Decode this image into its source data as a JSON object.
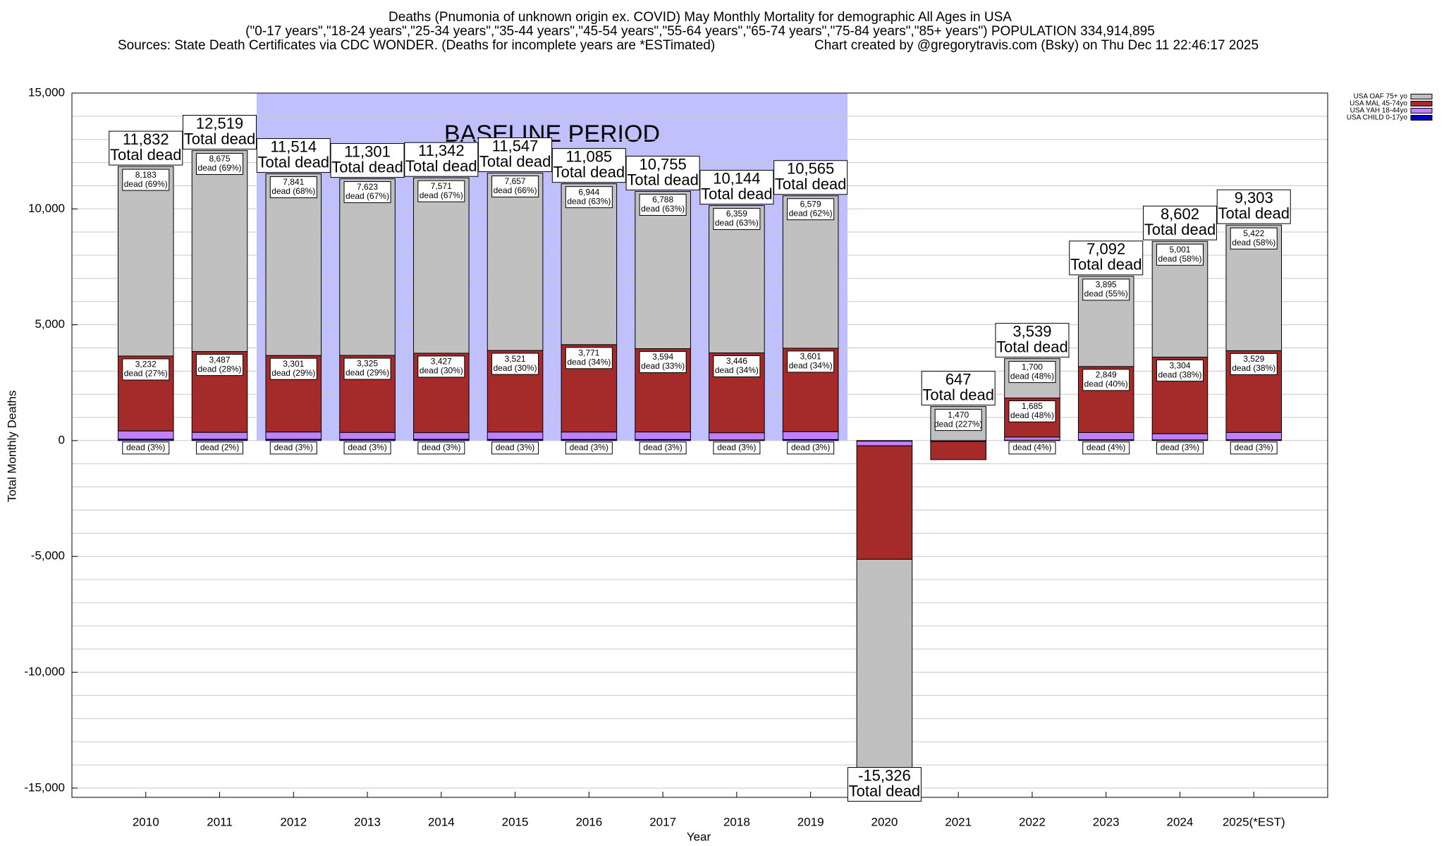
{
  "chart_data": {
    "type": "stacked_bar",
    "title": "Deaths (Pnumonia of unknown origin ex. COVID) May Monthly Mortality for demographic All Ages in USA",
    "subtitle": "(\"0-17 years\",\"18-24 years\",\"25-34 years\",\"35-44 years\",\"45-54 years\",\"55-64 years\",\"65-74 years\",\"75-84 years\",\"85+ years\") POPULATION 334,914,895",
    "source": "Sources: State Death Certificates via CDC WONDER. (Deaths for incomplete years are *ESTimated)",
    "credit": "Chart created by @gregorytravis.com (Bsky) on Thu Dec 11 22:46:17 2025",
    "y_label": "Total Monthly Deaths",
    "x_label": "Year",
    "categories": [
      "2010",
      "2011",
      "2012",
      "2013",
      "2014",
      "2015",
      "2016",
      "2017",
      "2018",
      "2019",
      "2020",
      "2021",
      "2022",
      "2023",
      "2024",
      "2025(*EST)"
    ],
    "series": [
      {
        "name": "USA OAF 75+ yo",
        "color": "#c0c0c0",
        "values": [
          8183,
          8675,
          7841,
          7623,
          7571,
          7657,
          6944,
          6788,
          6359,
          6579,
          -10200,
          1470,
          1700,
          3895,
          5001,
          5422
        ],
        "value_labels": [
          "8,183",
          "8,675",
          "7,841",
          "7,623",
          "7,571",
          "7,657",
          "6,944",
          "6,788",
          "6,359",
          "6,579",
          null,
          "1,470",
          "1,700",
          "3,895",
          "5,001",
          "5,422"
        ],
        "percent_labels": [
          "dead (69%)",
          "dead (69%)",
          "dead (68%)",
          "dead (67%)",
          "dead (67%)",
          "dead (66%)",
          "dead (63%)",
          "dead (63%)",
          "dead (63%)",
          "dead (62%)",
          null,
          "dead (227%)",
          "dead (48%)",
          "dead (55%)",
          "dead (58%)",
          "dead (58%)"
        ]
      },
      {
        "name": "USA MAL 45-74yo",
        "color": "#a52a2a",
        "values": [
          3232,
          3487,
          3301,
          3325,
          3427,
          3521,
          3771,
          3594,
          3446,
          3601,
          -4900,
          -780,
          1685,
          2849,
          3304,
          3529
        ],
        "value_labels": [
          "3,232",
          "3,487",
          "3,301",
          "3,325",
          "3,427",
          "3,521",
          "3,771",
          "3,594",
          "3,446",
          "3,601",
          null,
          null,
          "1,685",
          "2,849",
          "3,304",
          "3,529"
        ],
        "percent_labels": [
          "dead (27%)",
          "dead (28%)",
          "dead (29%)",
          "dead (29%)",
          "dead (30%)",
          "dead (30%)",
          "dead (34%)",
          "dead (33%)",
          "dead (34%)",
          "dead (34%)",
          null,
          null,
          "dead (48%)",
          "dead (40%)",
          "dead (38%)",
          "dead (38%)"
        ]
      },
      {
        "name": "USA YAH 18-44yo",
        "color": "#c080ff",
        "values": [
          354,
          297,
          315,
          299,
          286,
          316,
          319,
          326,
          308,
          339,
          -200,
          -40,
          138,
          312,
          268,
          316
        ],
        "value_labels": [
          null,
          null,
          null,
          null,
          null,
          null,
          null,
          null,
          null,
          null,
          null,
          null,
          null,
          null,
          null,
          null
        ],
        "percent_labels": [
          "dead (3%)",
          "dead (2%)",
          "dead (3%)",
          "dead (3%)",
          "dead (3%)",
          "dead (3%)",
          "dead (3%)",
          "dead (3%)",
          "dead (3%)",
          "dead (3%)",
          null,
          null,
          "dead (4%)",
          "dead (4%)",
          "dead (3%)",
          "dead (3%)"
        ]
      },
      {
        "name": "USA CHILD 0-17yo",
        "color": "#0000c0",
        "values": [
          63,
          60,
          57,
          54,
          58,
          53,
          51,
          47,
          31,
          46,
          -26,
          -3,
          16,
          36,
          29,
          36
        ]
      }
    ],
    "total_labels": [
      "11,832",
      "12,519",
      "11,514",
      "11,301",
      "11,342",
      "11,547",
      "11,085",
      "10,755",
      "10,144",
      "10,565",
      "-15,326",
      "647",
      "3,539",
      "7,092",
      "8,602",
      "9,303"
    ],
    "total_caption": "Total dead",
    "baseline_period": {
      "label": "BASELINE PERIOD",
      "start": "2012",
      "end": "2019",
      "color": "#c0c0ff"
    },
    "ylim": [
      -15400,
      15000
    ],
    "yticks": [
      {
        "value": -15000,
        "label": "-15,000"
      },
      {
        "value": -10000,
        "label": "-10,000"
      },
      {
        "value": -5000,
        "label": "-5,000"
      },
      0,
      {
        "value": 5000,
        "label": "5,000"
      },
      {
        "value": 10000,
        "label": "10,000"
      },
      {
        "value": 15000,
        "label": "15,000"
      }
    ],
    "yticks_minor": [
      -15000,
      -14000,
      -13000,
      -12000,
      -11000,
      -10000,
      -9000,
      -8000,
      -7000,
      -6000,
      -5000,
      -4000,
      -3000,
      -2000,
      -1000,
      0,
      1000,
      2000,
      3000,
      4000,
      5000,
      6000,
      7000,
      8000,
      9000,
      10000,
      11000,
      12000,
      13000,
      14000,
      15000
    ],
    "grid": true,
    "legend": "top-right"
  }
}
